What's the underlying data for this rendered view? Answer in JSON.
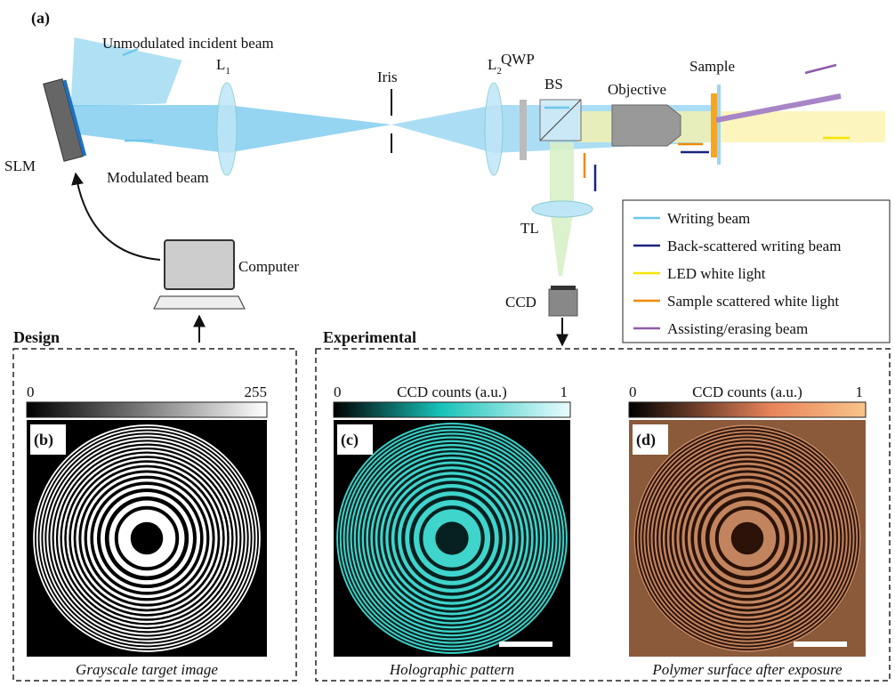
{
  "panel_a": {
    "label": "(a)",
    "components": {
      "incident": "Unmodulated incident beam",
      "l1": "L",
      "l1_sub": "1",
      "iris": "Iris",
      "l2": "L",
      "l2_sub": "2",
      "qwp": "QWP",
      "bs": "BS",
      "objective": "Objective",
      "sample": "Sample",
      "slm": "SLM",
      "modulated": "Modulated beam",
      "tl": "TL",
      "computer": "Computer",
      "ccd": "CCD"
    },
    "legend": [
      "Writing beam",
      "Back-scattered writing beam",
      "LED white light",
      "Sample scattered white light",
      "Assisting/erasing beam"
    ]
  },
  "design": {
    "title": "Design",
    "colorbar_min": "0",
    "colorbar_max": "255",
    "label": "(b)",
    "caption": "Grayscale target image"
  },
  "experimental": {
    "title": "Experimental",
    "c": {
      "colorbar_min": "0",
      "colorbar_title": "CCD counts (a.u.)",
      "colorbar_max": "1",
      "label": "(c)",
      "caption": "Holographic pattern"
    },
    "d": {
      "colorbar_min": "0",
      "colorbar_title": "CCD counts (a.u.)",
      "colorbar_max": "1",
      "label": "(d)",
      "caption": "Polymer surface after exposure"
    }
  }
}
